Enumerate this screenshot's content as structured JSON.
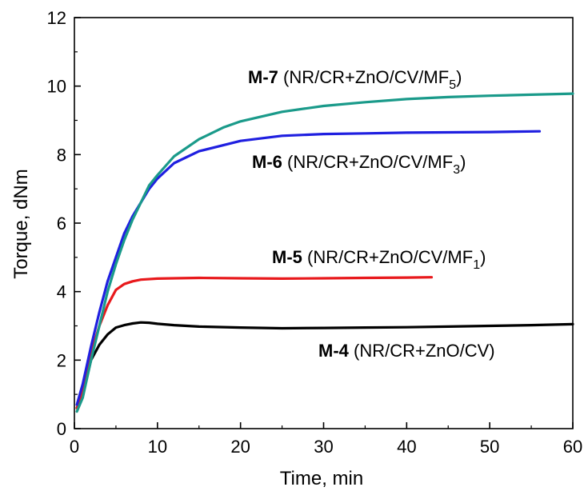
{
  "chart_data": {
    "type": "line",
    "xlabel": "Time, min",
    "ylabel": "Torque, dNm",
    "xlim": [
      0,
      60
    ],
    "ylim": [
      0,
      12
    ],
    "xticks": [
      "0",
      "10",
      "20",
      "30",
      "40",
      "50",
      "60"
    ],
    "yticks": [
      "0",
      "2",
      "4",
      "6",
      "8",
      "10",
      "12"
    ],
    "grid": false,
    "legend": "none",
    "series": [
      {
        "name": "M-4 (NR/CR+ZnO/CV)",
        "label_bold": "M-4",
        "label_rest": "(NR/CR+ZnO/CV)",
        "label_sub": "",
        "color": "#000000",
        "points": [
          [
            0.3,
            0.6
          ],
          [
            1,
            1.0
          ],
          [
            2,
            2.0
          ],
          [
            3,
            2.45
          ],
          [
            4,
            2.75
          ],
          [
            5,
            2.95
          ],
          [
            6,
            3.02
          ],
          [
            7,
            3.07
          ],
          [
            8,
            3.1
          ],
          [
            9,
            3.09
          ],
          [
            10,
            3.06
          ],
          [
            12,
            3.02
          ],
          [
            15,
            2.98
          ],
          [
            20,
            2.95
          ],
          [
            25,
            2.93
          ],
          [
            30,
            2.94
          ],
          [
            35,
            2.95
          ],
          [
            40,
            2.96
          ],
          [
            45,
            2.98
          ],
          [
            50,
            3.0
          ],
          [
            55,
            3.02
          ],
          [
            60,
            3.05
          ]
        ]
      },
      {
        "name": "M-5 (NR/CR+ZnO/CV/MF1)",
        "label_bold": "M-5",
        "label_rest": "(NR/CR+ZnO/CV/MF",
        "label_sub": "1",
        "color": "#e8191c",
        "points": [
          [
            0.3,
            0.6
          ],
          [
            1,
            1.1
          ],
          [
            2,
            2.2
          ],
          [
            3,
            3.0
          ],
          [
            4,
            3.6
          ],
          [
            5,
            4.05
          ],
          [
            6,
            4.22
          ],
          [
            7,
            4.3
          ],
          [
            8,
            4.35
          ],
          [
            10,
            4.38
          ],
          [
            12,
            4.39
          ],
          [
            15,
            4.4
          ],
          [
            20,
            4.39
          ],
          [
            25,
            4.38
          ],
          [
            30,
            4.39
          ],
          [
            35,
            4.4
          ],
          [
            40,
            4.41
          ],
          [
            43,
            4.42
          ]
        ]
      },
      {
        "name": "M-6 (NR/CR+ZnO/CV/MF3)",
        "label_bold": "M-6",
        "label_rest": "(NR/CR+ZnO/CV/MF",
        "label_sub": "3",
        "color": "#1f1fe0",
        "points": [
          [
            0.3,
            0.7
          ],
          [
            1,
            1.3
          ],
          [
            2,
            2.4
          ],
          [
            3,
            3.4
          ],
          [
            4,
            4.3
          ],
          [
            5,
            5.0
          ],
          [
            6,
            5.7
          ],
          [
            7,
            6.2
          ],
          [
            8,
            6.6
          ],
          [
            9,
            7.0
          ],
          [
            10,
            7.3
          ],
          [
            12,
            7.75
          ],
          [
            15,
            8.1
          ],
          [
            20,
            8.4
          ],
          [
            25,
            8.55
          ],
          [
            30,
            8.6
          ],
          [
            35,
            8.62
          ],
          [
            40,
            8.64
          ],
          [
            45,
            8.65
          ],
          [
            50,
            8.66
          ],
          [
            56,
            8.68
          ]
        ]
      },
      {
        "name": "M-7 (NR/CR+ZnO/CV/MF5)",
        "label_bold": "M-7",
        "label_rest": "(NR/CR+ZnO/CV/MF",
        "label_sub": "5",
        "color": "#1a9a8a",
        "points": [
          [
            0.3,
            0.5
          ],
          [
            1,
            0.9
          ],
          [
            2,
            2.0
          ],
          [
            3,
            3.0
          ],
          [
            4,
            4.0
          ],
          [
            5,
            4.8
          ],
          [
            6,
            5.5
          ],
          [
            7,
            6.1
          ],
          [
            8,
            6.6
          ],
          [
            9,
            7.1
          ],
          [
            10,
            7.4
          ],
          [
            12,
            7.95
          ],
          [
            15,
            8.45
          ],
          [
            18,
            8.8
          ],
          [
            20,
            8.97
          ],
          [
            25,
            9.25
          ],
          [
            30,
            9.42
          ],
          [
            35,
            9.53
          ],
          [
            40,
            9.62
          ],
          [
            45,
            9.68
          ],
          [
            50,
            9.72
          ],
          [
            55,
            9.75
          ],
          [
            60,
            9.78
          ]
        ]
      }
    ]
  }
}
